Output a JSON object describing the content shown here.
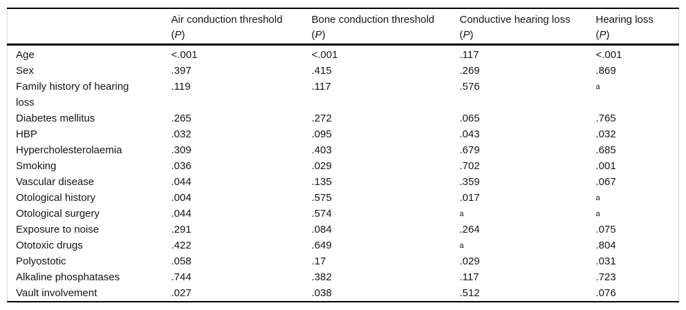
{
  "colors": {
    "text": "#141414",
    "rule": "#000000",
    "side_rule": "#d9d9d9"
  },
  "table": {
    "header": {
      "row_label_column": "",
      "sub": {
        "open": "(",
        "p": "P",
        "close": ")"
      },
      "columns": [
        {
          "title": "Air conduction threshold"
        },
        {
          "title": "Bone conduction threshold"
        },
        {
          "title": "Conductive hearing loss"
        },
        {
          "title": "Hearing loss"
        }
      ]
    },
    "footnote_marker": "a",
    "rows": [
      {
        "label": "Age",
        "values": [
          {
            "text": "<.001"
          },
          {
            "text": "<.001"
          },
          {
            "text": ".117"
          },
          {
            "text": "<.001"
          }
        ]
      },
      {
        "label": "Sex",
        "values": [
          {
            "text": ".397"
          },
          {
            "text": ".415"
          },
          {
            "text": ".269"
          },
          {
            "text": ".869"
          }
        ]
      },
      {
        "label": "Family history of hearing loss",
        "values": [
          {
            "text": ".119"
          },
          {
            "text": ".117"
          },
          {
            "text": ".576"
          },
          {
            "text": "a",
            "sup": true
          }
        ]
      },
      {
        "label": "Diabetes mellitus",
        "values": [
          {
            "text": ".265"
          },
          {
            "text": ".272"
          },
          {
            "text": ".065"
          },
          {
            "text": ".765"
          }
        ]
      },
      {
        "label": "HBP",
        "values": [
          {
            "text": ".032"
          },
          {
            "text": ".095"
          },
          {
            "text": ".043"
          },
          {
            "text": ".032"
          }
        ]
      },
      {
        "label": "Hypercholesterolaemia",
        "values": [
          {
            "text": ".309"
          },
          {
            "text": ".403"
          },
          {
            "text": ".679"
          },
          {
            "text": ".685"
          }
        ]
      },
      {
        "label": "Smoking",
        "values": [
          {
            "text": ".036"
          },
          {
            "text": ".029"
          },
          {
            "text": ".702"
          },
          {
            "text": ".001"
          }
        ]
      },
      {
        "label": "Vascular disease",
        "values": [
          {
            "text": ".044"
          },
          {
            "text": ".135"
          },
          {
            "text": ".359"
          },
          {
            "text": ".067"
          }
        ]
      },
      {
        "label": "Otological history",
        "values": [
          {
            "text": ".004"
          },
          {
            "text": ".575"
          },
          {
            "text": ".017"
          },
          {
            "text": "a",
            "sup": true
          }
        ]
      },
      {
        "label": "Otological surgery",
        "values": [
          {
            "text": ".044"
          },
          {
            "text": ".574"
          },
          {
            "text": "a",
            "sup": true
          },
          {
            "text": "a",
            "sup": true
          }
        ]
      },
      {
        "label": "Exposure to noise",
        "values": [
          {
            "text": ".291"
          },
          {
            "text": ".084"
          },
          {
            "text": ".264"
          },
          {
            "text": ".075"
          }
        ]
      },
      {
        "label": "Ototoxic drugs",
        "values": [
          {
            "text": ".422"
          },
          {
            "text": ".649"
          },
          {
            "text": "a",
            "sup": true
          },
          {
            "text": ".804"
          }
        ]
      },
      {
        "label": "Polyostotic",
        "values": [
          {
            "text": ".058"
          },
          {
            "text": ".17"
          },
          {
            "text": ".029"
          },
          {
            "text": ".031"
          }
        ]
      },
      {
        "label": "Alkaline phosphatases",
        "values": [
          {
            "text": ".744"
          },
          {
            "text": ".382"
          },
          {
            "text": ".117"
          },
          {
            "text": ".723"
          }
        ]
      },
      {
        "label": "Vault involvement",
        "values": [
          {
            "text": ".027"
          },
          {
            "text": ".038"
          },
          {
            "text": ".512"
          },
          {
            "text": ".076"
          }
        ]
      }
    ]
  }
}
